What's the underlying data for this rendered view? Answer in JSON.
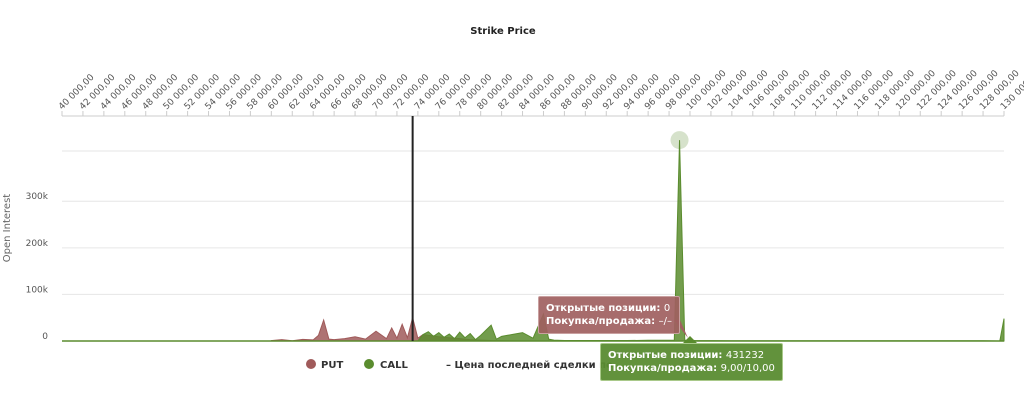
{
  "colors": {
    "put": "#a05a5a",
    "call": "#5a8c2e",
    "last_price_line": "#222222",
    "grid": "#e6e6e6"
  },
  "legend": {
    "put_label": "PUT",
    "call_label": "CALL",
    "last_price_label": "– Цена последней сделки по"
  },
  "tooltips": {
    "put": {
      "oi_label": "Открытые позиции:",
      "oi_value": "0",
      "bidask_label": "Покупка/продажа:",
      "bidask_value": "–/–"
    },
    "call": {
      "oi_label": "Открытые позиции:",
      "oi_value": "431232",
      "bidask_label": "Покупка/продажа:",
      "bidask_value": "9,00/10,00"
    }
  },
  "chart_data": {
    "type": "area",
    "title": "Strike Price",
    "ylabel": "Open Interest",
    "x_tick_labels": [
      "40 000,00",
      "42 000,00",
      "44 000,00",
      "46 000,00",
      "48 000,00",
      "50 000,00",
      "52 000,00",
      "54 000,00",
      "56 000,00",
      "58 000,00",
      "60 000,00",
      "62 000,00",
      "64 000,00",
      "66 000,00",
      "68 000,00",
      "70 000,00",
      "72 000,00",
      "74 000,00",
      "76 000,00",
      "78 000,00",
      "80 000,00",
      "82 000,00",
      "84 000,00",
      "86 000,00",
      "88 000,00",
      "90 000,00",
      "92 000,00",
      "94 000,00",
      "96 000,00",
      "98 000,00",
      "100 000,00",
      "102 000,00",
      "104 000,00",
      "106 000,00",
      "108 000,00",
      "110 000,00",
      "112 000,00",
      "114 000,00",
      "116 000,00",
      "118 000,00",
      "120 000,00",
      "122 000,00",
      "124 000,00",
      "126 000,00",
      "128 000,00",
      "130 000,00"
    ],
    "y_ticks": [
      0,
      100000,
      200000,
      300000
    ],
    "y_tick_labels": [
      "0",
      "100k",
      "200k",
      "300k"
    ],
    "xlim": [
      40000,
      130000
    ],
    "ylim": [
      0,
      440000
    ],
    "last_price_x": 73500,
    "highlight": {
      "series": "CALL",
      "x": 99000,
      "y": 431232
    },
    "series": [
      {
        "name": "PUT",
        "points": [
          [
            60000,
            1000
          ],
          [
            61000,
            3000
          ],
          [
            62000,
            500
          ],
          [
            63000,
            3500
          ],
          [
            64000,
            2500
          ],
          [
            64500,
            12000
          ],
          [
            65000,
            45000
          ],
          [
            65500,
            4000
          ],
          [
            66000,
            3000
          ],
          [
            67000,
            5000
          ],
          [
            68000,
            9000
          ],
          [
            69000,
            4000
          ],
          [
            70000,
            21000
          ],
          [
            71000,
            5000
          ],
          [
            71500,
            28000
          ],
          [
            72000,
            6000
          ],
          [
            72500,
            36000
          ],
          [
            73000,
            7000
          ],
          [
            73500,
            50000
          ],
          [
            74000,
            6000
          ],
          [
            74500,
            14000
          ],
          [
            75000,
            12000
          ],
          [
            75500,
            11000
          ],
          [
            76000,
            9000
          ],
          [
            77000,
            7000
          ],
          [
            78000,
            5000
          ],
          [
            79000,
            3000
          ],
          [
            80000,
            2000
          ],
          [
            81000,
            1000
          ],
          [
            82000,
            500
          ],
          [
            84000,
            0
          ]
        ]
      },
      {
        "name": "CALL",
        "points": [
          [
            74000,
            0
          ],
          [
            74500,
            14000
          ],
          [
            75000,
            20000
          ],
          [
            75500,
            10000
          ],
          [
            76000,
            18000
          ],
          [
            76500,
            8000
          ],
          [
            77000,
            15000
          ],
          [
            77500,
            5000
          ],
          [
            78000,
            19000
          ],
          [
            78500,
            7000
          ],
          [
            79000,
            16000
          ],
          [
            79500,
            3000
          ],
          [
            80000,
            12000
          ],
          [
            81000,
            34000
          ],
          [
            81500,
            4000
          ],
          [
            82000,
            10000
          ],
          [
            83000,
            14000
          ],
          [
            84000,
            18000
          ],
          [
            85000,
            6000
          ],
          [
            86000,
            58000
          ],
          [
            86500,
            4000
          ],
          [
            87000,
            2000
          ],
          [
            88000,
            1000
          ],
          [
            90000,
            1000
          ],
          [
            92000,
            1000
          ],
          [
            94000,
            1000
          ],
          [
            96000,
            1500
          ],
          [
            98500,
            2000
          ],
          [
            99000,
            431232
          ],
          [
            99500,
            2000
          ],
          [
            100500,
            1000
          ],
          [
            104000,
            500
          ],
          [
            110000,
            500
          ],
          [
            120000,
            500
          ],
          [
            128000,
            500
          ],
          [
            129600,
            0
          ],
          [
            130000,
            48000
          ]
        ]
      }
    ]
  }
}
